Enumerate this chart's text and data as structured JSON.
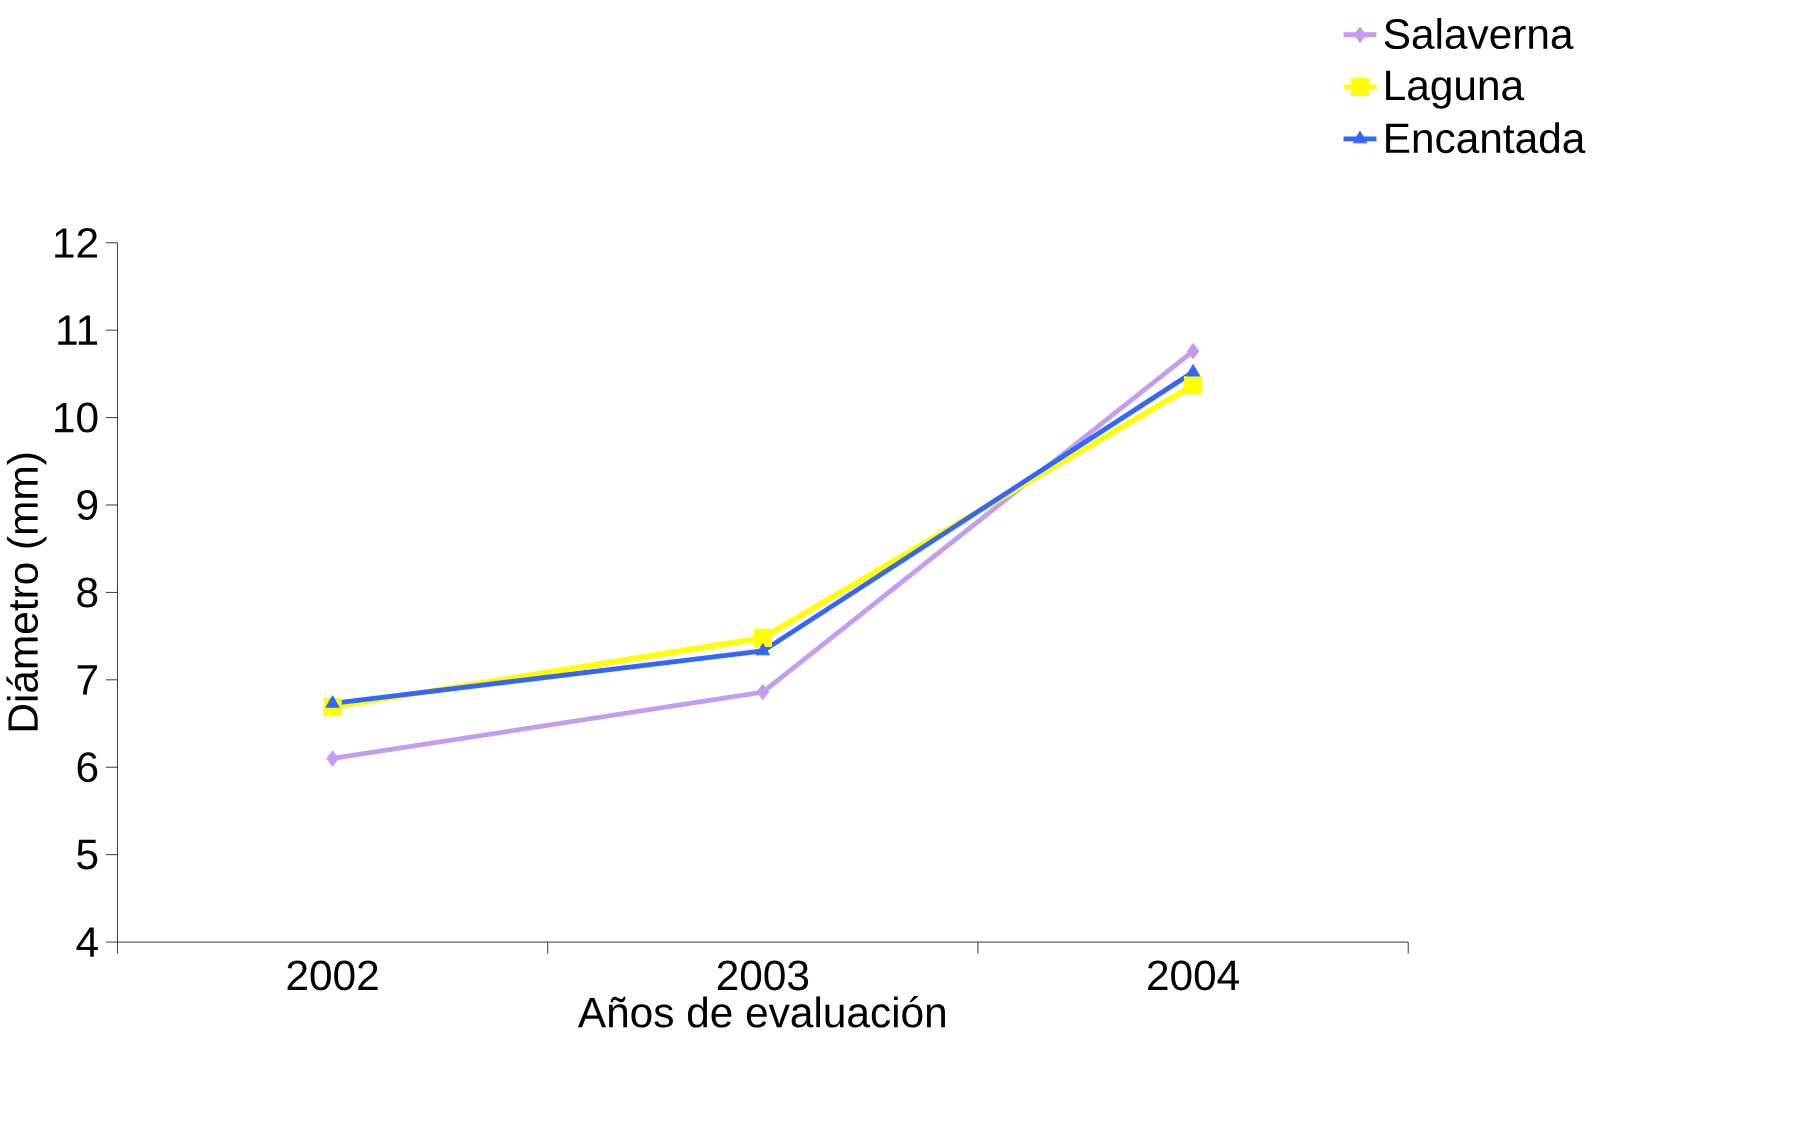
{
  "chart_data": {
    "type": "line",
    "xlabel": "Años de evaluación",
    "ylabel": "Diámetro (mm)",
    "categories": [
      "2002",
      "2003",
      "2004"
    ],
    "series": [
      {
        "name": "Salaverna",
        "color": "#c49cf0",
        "marker": "diamond",
        "values": [
          6.1,
          6.86,
          10.76
        ]
      },
      {
        "name": "Laguna",
        "color": "#ffff00",
        "marker": "square",
        "values": [
          6.69,
          7.48,
          10.37
        ]
      },
      {
        "name": "Encantada",
        "color": "#3366ff",
        "marker": "triangle",
        "values": [
          6.73,
          7.33,
          10.52
        ]
      }
    ],
    "ylim": [
      4,
      12
    ],
    "yticks": [
      4,
      5,
      6,
      7,
      8,
      9,
      10,
      11,
      12
    ],
    "grid": false,
    "legend": "top right",
    "line_style": "solid"
  }
}
